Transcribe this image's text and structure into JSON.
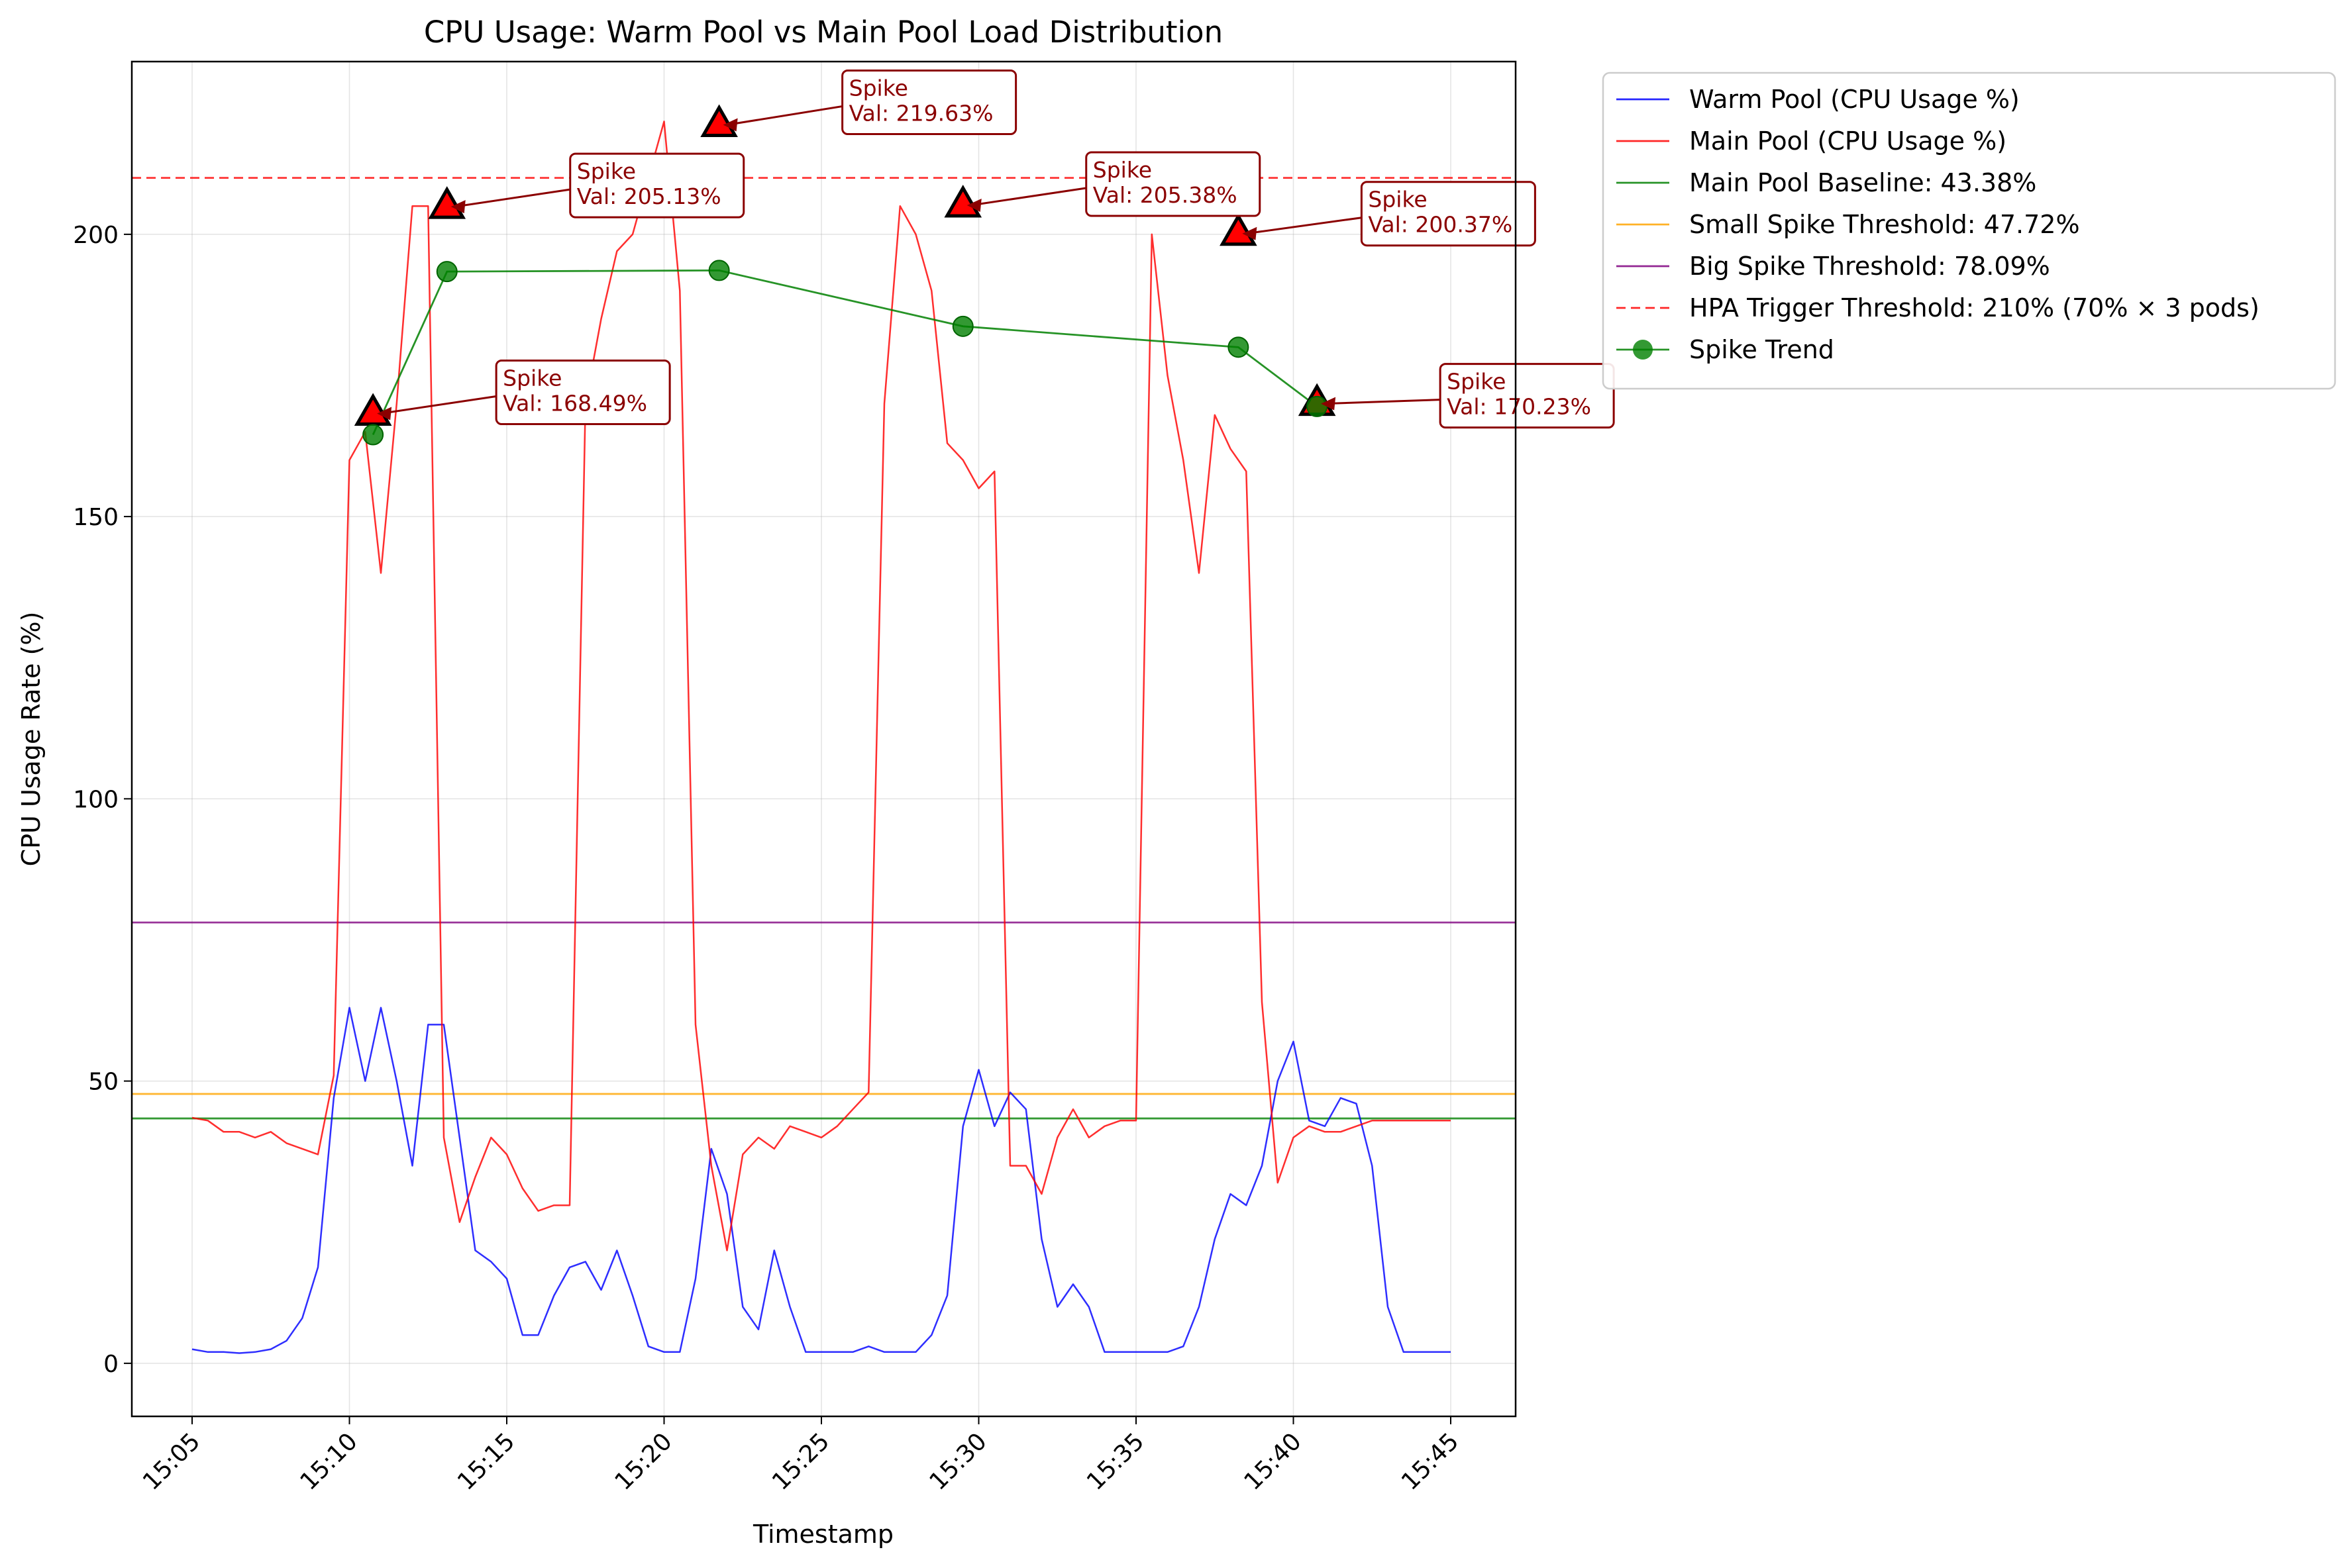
{
  "chart_data": {
    "type": "line",
    "title": "CPU Usage: Warm Pool vs Main Pool Load Distribution",
    "xlabel": "Timestamp",
    "ylabel": "CPU Usage Rate (%)",
    "xlim": [
      "15:03",
      "15:47"
    ],
    "ylim": [
      -9.4,
      230.6
    ],
    "x_ticks": [
      "15:05",
      "15:10",
      "15:15",
      "15:20",
      "15:25",
      "15:30",
      "15:35",
      "15:40",
      "15:45"
    ],
    "y_ticks": [
      0,
      50,
      100,
      150,
      200
    ],
    "grid": true,
    "legend_position": "outside upper right",
    "x_minutes": [
      0,
      0.5,
      1,
      1.5,
      2,
      2.5,
      3,
      3.5,
      4,
      4.5,
      5,
      5.5,
      6,
      6.5,
      7,
      7.5,
      8,
      8.5,
      9,
      9.5,
      10,
      10.5,
      11,
      11.5,
      12,
      12.5,
      13,
      13.5,
      14,
      14.5,
      15,
      15.5,
      16,
      16.5,
      17,
      17.5,
      18,
      18.5,
      19,
      19.5,
      20,
      20.5,
      21,
      21.5,
      22,
      22.5,
      23,
      23.5,
      24,
      24.5,
      25,
      25.5,
      26,
      26.5,
      27,
      27.5,
      28,
      28.5,
      29,
      29.5,
      30,
      30.5,
      31,
      31.5,
      32,
      32.5,
      33,
      33.5,
      34,
      34.5,
      35,
      35.5,
      36,
      36.5,
      37,
      37.5,
      38,
      38.5,
      39,
      39.5,
      40
    ],
    "series": [
      {
        "name": "Warm Pool (CPU Usage %)",
        "color": "#0000ff",
        "values": [
          2.5,
          2,
          2,
          1.8,
          2,
          2.5,
          4,
          8,
          17,
          47,
          63,
          50,
          63,
          50,
          35,
          60,
          60,
          40,
          20,
          18,
          15,
          5,
          5,
          12,
          17,
          18,
          13,
          20,
          12,
          3,
          2,
          2,
          15,
          38,
          30,
          10,
          6,
          20,
          10,
          2,
          2,
          2,
          2,
          3,
          2,
          2,
          2,
          5,
          12,
          42,
          52,
          42,
          48,
          45,
          22,
          10,
          14,
          10,
          2,
          2,
          2,
          2,
          2,
          3,
          10,
          22,
          30,
          28,
          35,
          50,
          57,
          43,
          42,
          47,
          46,
          35,
          10,
          2,
          2,
          2,
          2
        ]
      },
      {
        "name": "Main Pool (CPU Usage %)",
        "color": "#ff0000",
        "values": [
          43.5,
          43,
          41,
          41,
          40,
          41,
          39,
          38,
          37,
          51,
          160,
          165,
          140,
          170,
          205,
          205,
          40,
          25,
          33,
          40,
          37,
          31,
          27,
          28,
          28,
          170,
          185,
          197,
          200,
          210,
          220,
          190,
          60,
          35,
          20,
          37,
          40,
          38,
          42,
          41,
          40,
          42,
          45,
          48,
          170,
          205,
          200,
          190,
          163,
          160,
          155,
          158,
          35,
          35,
          30,
          40,
          45,
          40,
          42,
          43,
          43,
          200,
          175,
          160,
          140,
          168,
          162,
          158,
          64,
          32,
          40,
          42,
          41,
          41,
          42,
          43,
          43,
          43,
          43,
          43,
          43
        ],
        "spikes": [
          {
            "x": 5.75,
            "value": 168.49,
            "label": "Spike\nVal: 168.49%"
          },
          {
            "x": 8.1,
            "value": 205.13,
            "label": "Spike\nVal: 205.13%"
          },
          {
            "x": 16.75,
            "value": 219.63,
            "label": "Spike\nVal: 219.63%"
          },
          {
            "x": 24.5,
            "value": 205.38,
            "label": "Spike\nVal: 205.38%"
          },
          {
            "x": 33.25,
            "value": 200.37,
            "label": "Spike\nVal: 200.37%"
          },
          {
            "x": 35.75,
            "value": 170.23,
            "label": "Spike\nVal: 170.23%"
          }
        ]
      },
      {
        "name": "Spike Trend",
        "color": "#008000",
        "points": [
          {
            "x": 5.75,
            "y": 164.5
          },
          {
            "x": 8.1,
            "y": 193.4
          },
          {
            "x": 16.75,
            "y": 193.6
          },
          {
            "x": 24.5,
            "y": 183.7
          },
          {
            "x": 33.25,
            "y": 180.0
          },
          {
            "x": 35.75,
            "y": 169.5
          }
        ]
      }
    ],
    "reference_lines": [
      {
        "name": "Main Pool Baseline: 43.38%",
        "value": 43.38,
        "color": "#008000",
        "style": "solid"
      },
      {
        "name": "Small Spike Threshold: 47.72%",
        "value": 47.72,
        "color": "#ffa500",
        "style": "solid"
      },
      {
        "name": "Big Spike Threshold: 78.09%",
        "value": 78.09,
        "color": "#800080",
        "style": "solid"
      },
      {
        "name": "HPA Trigger Threshold: 210% (70% × 3 pods)",
        "value": 210,
        "color": "#ff0000",
        "style": "dashed"
      }
    ]
  }
}
